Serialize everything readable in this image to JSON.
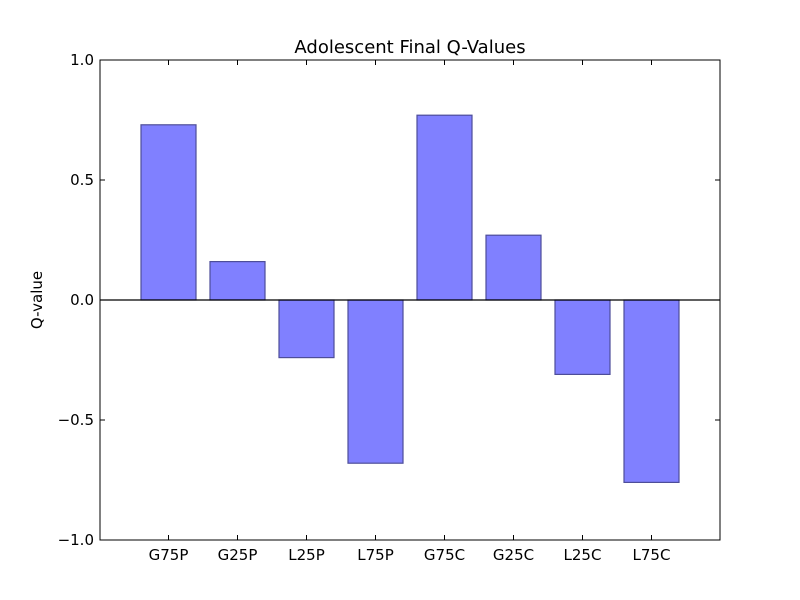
{
  "chart_data": {
    "type": "bar",
    "title": "Adolescent Final Q-Values",
    "xlabel": "",
    "ylabel": "Q-value",
    "categories": [
      "G75P",
      "G25P",
      "L25P",
      "L75P",
      "G75C",
      "G25C",
      "L25C",
      "L75C"
    ],
    "values": [
      0.73,
      0.16,
      -0.24,
      -0.68,
      0.77,
      0.27,
      -0.31,
      -0.76
    ],
    "ylim": [
      -1.0,
      1.0
    ],
    "yticks": [
      -1.0,
      -0.5,
      0.0,
      0.5,
      1.0
    ],
    "ytick_labels": [
      "−1.0",
      "−0.5",
      "0.0",
      "0.5",
      "1.0"
    ],
    "grid": false,
    "zero_line": true,
    "colors": {
      "bar_fill": "#8080ff",
      "bar_edge": "#4d4d99",
      "axis": "#000000"
    }
  }
}
